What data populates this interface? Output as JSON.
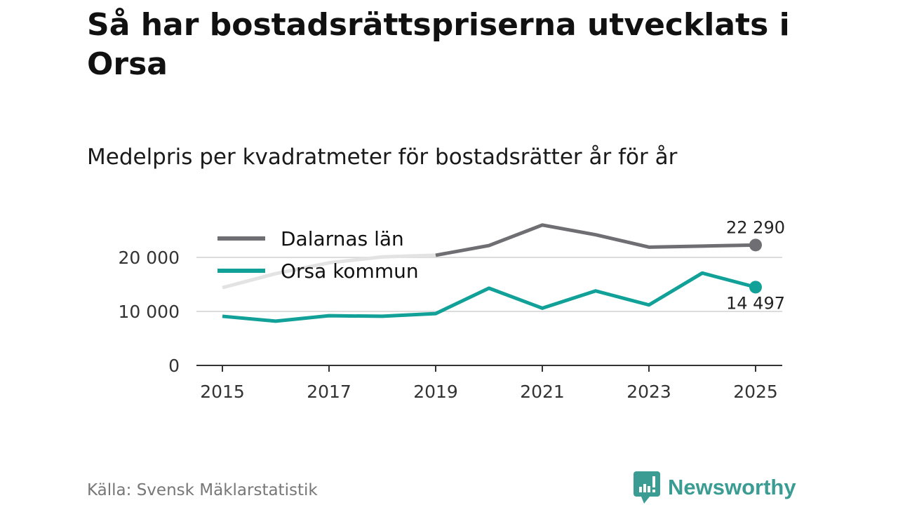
{
  "title": "Så har bostadsrättspriserna utvecklats i Orsa",
  "subtitle": "Medelpris per kvadratmeter för bostadsrätter år för år",
  "source": "Källa: Svensk Mäklarstatistik",
  "logo_text": "Newsworthy",
  "chart_data": {
    "type": "line",
    "title": "Medelpris per kvadratmeter för bostadsrätter år för år",
    "xlabel": "",
    "ylabel": "",
    "x": [
      2015,
      2016,
      2017,
      2018,
      2019,
      2020,
      2021,
      2022,
      2023,
      2024,
      2025
    ],
    "xticks": [
      "2015",
      "2017",
      "2019",
      "2021",
      "2023",
      "2025"
    ],
    "yticks": [
      0,
      10000,
      20000
    ],
    "ytick_labels": [
      "0",
      "10 000",
      "20 000"
    ],
    "ylim": [
      0,
      27000
    ],
    "grid": true,
    "legend_position": "top-left",
    "series": [
      {
        "name": "Dalarnas län",
        "color": "#6e6e73",
        "faded_color": "#e3e3e3",
        "faded_until": 2019,
        "values": [
          14400,
          17000,
          19000,
          20100,
          20400,
          22200,
          26000,
          24200,
          21900,
          22100,
          22290
        ],
        "end_label": "22 290"
      },
      {
        "name": "Orsa kommun",
        "color": "#11a198",
        "values": [
          9100,
          8200,
          9200,
          9100,
          9600,
          14300,
          10600,
          13800,
          11200,
          17100,
          14497
        ],
        "end_label": "14 497"
      }
    ]
  }
}
